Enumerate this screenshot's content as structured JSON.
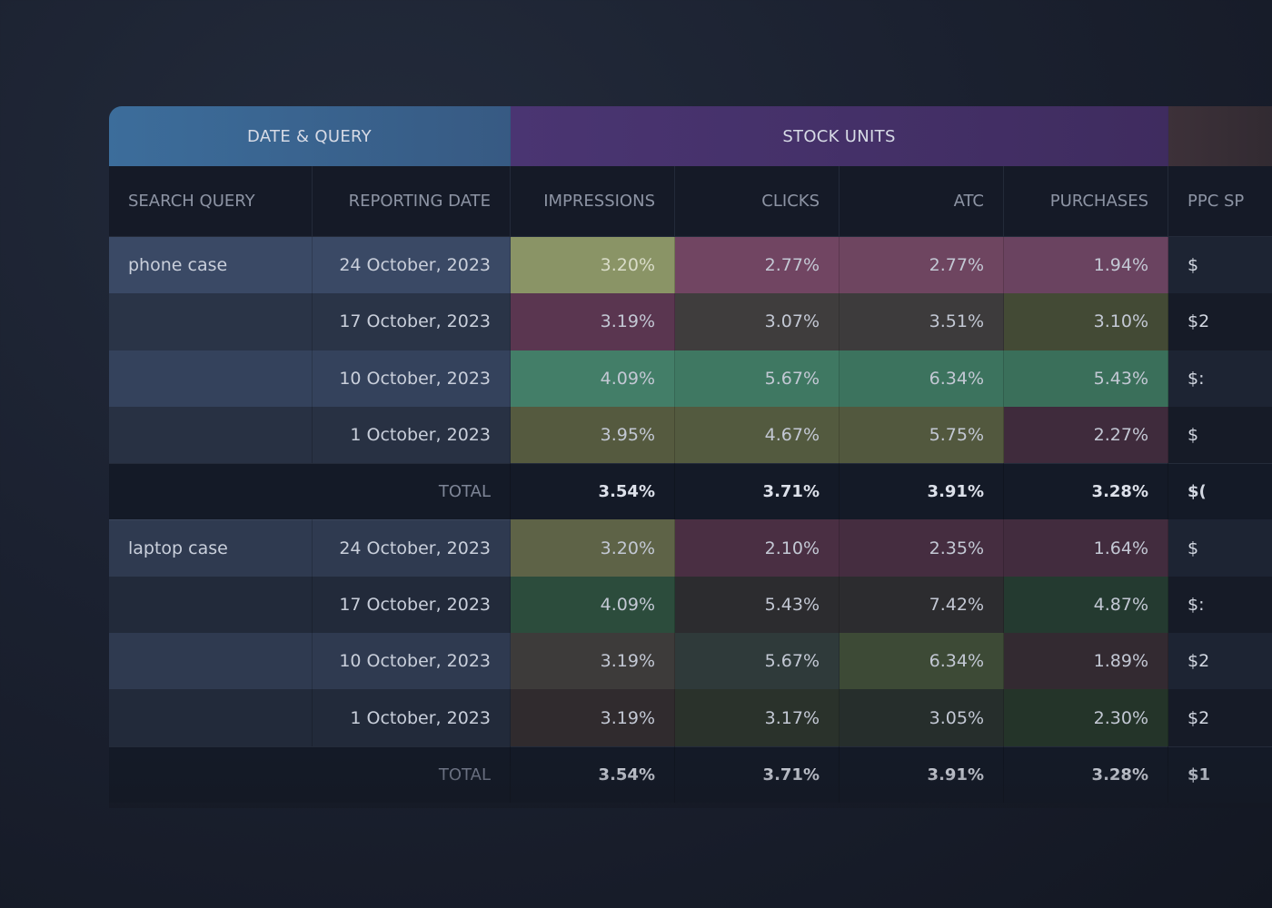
{
  "headers": {
    "groups": {
      "date_query": "DATE & QUERY",
      "stock_units": "STOCK UNITS"
    },
    "columns": {
      "search_query": "SEARCH QUERY",
      "reporting_date": "REPORTING DATE",
      "impressions": "IMPRESSIONS",
      "clicks": "CLICKS",
      "atc": "ATC",
      "purchases": "PURCHASES",
      "ppc": "PPC SP"
    }
  },
  "colors": {
    "olive_bright": "#8a9466",
    "olive": "#555a3f",
    "olive_dark": "#3f4637",
    "mauve": "#714562",
    "mauve_dark": "#4a2f43",
    "plum": "#5a3650",
    "brown": "#3d3b3a",
    "green": "#3f7a63",
    "green_dark": "#2c4c3c",
    "green_olive": "#3d4a36"
  },
  "rows": [
    {
      "query": "phone case",
      "date": "24 October, 2023",
      "impressions": "3.20%",
      "clicks": "2.77%",
      "atc": "2.77%",
      "purchases": "1.94%",
      "ppc": "$"
    },
    {
      "query": "",
      "date": "17 October, 2023",
      "impressions": "3.19%",
      "clicks": "3.07%",
      "atc": "3.51%",
      "purchases": "3.10%",
      "ppc": "$2"
    },
    {
      "query": "",
      "date": "10 October, 2023",
      "impressions": "4.09%",
      "clicks": "5.67%",
      "atc": "6.34%",
      "purchases": "5.43%",
      "ppc": "$:"
    },
    {
      "query": "",
      "date": "1 October, 2023",
      "impressions": "3.95%",
      "clicks": "4.67%",
      "atc": "5.75%",
      "purchases": "2.27%",
      "ppc": "$"
    },
    {
      "total_label": "TOTAL",
      "impressions": "3.54%",
      "clicks": "3.71%",
      "atc": "3.91%",
      "purchases": "3.28%",
      "ppc": "$("
    },
    {
      "query": "laptop case",
      "date": "24 October, 2023",
      "impressions": "3.20%",
      "clicks": "2.10%",
      "atc": "2.35%",
      "purchases": "1.64%",
      "ppc": "$"
    },
    {
      "query": "",
      "date": "17 October, 2023",
      "impressions": "4.09%",
      "clicks": "5.43%",
      "atc": "7.42%",
      "purchases": "4.87%",
      "ppc": "$:"
    },
    {
      "query": "",
      "date": "10 October, 2023",
      "impressions": "3.19%",
      "clicks": "5.67%",
      "atc": "6.34%",
      "purchases": "1.89%",
      "ppc": "$2"
    },
    {
      "query": "",
      "date": "1 October, 2023",
      "impressions": "3.19%",
      "clicks": "3.17%",
      "atc": "3.05%",
      "purchases": "2.30%",
      "ppc": "$2"
    },
    {
      "total_label": "TOTAL",
      "impressions": "3.54%",
      "clicks": "3.71%",
      "atc": "3.91%",
      "purchases": "3.28%",
      "ppc": "$1"
    }
  ]
}
